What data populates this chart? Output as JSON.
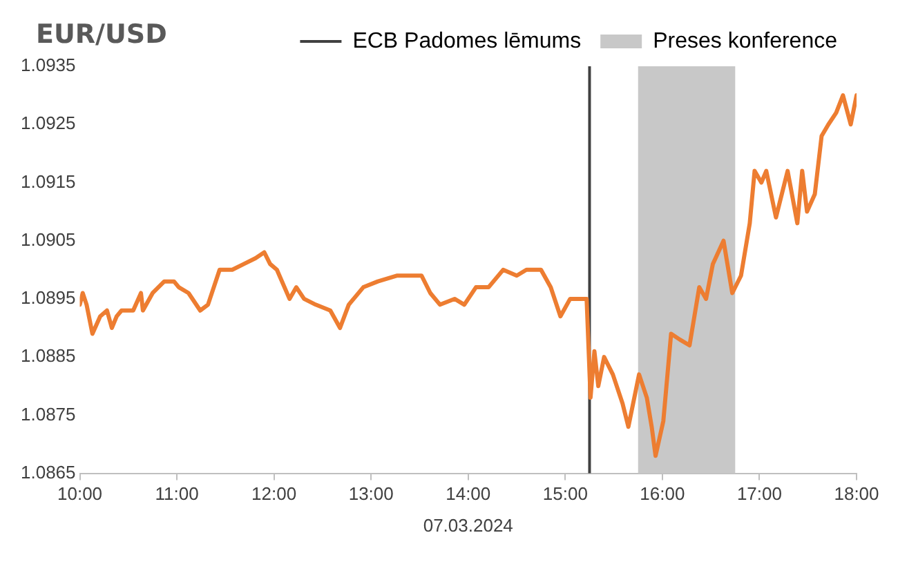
{
  "chart_data": {
    "type": "line",
    "title": "EUR/USD",
    "xlabel": "07.03.2024",
    "x": [
      10.0,
      10.03,
      10.07,
      10.13,
      10.21,
      10.28,
      10.33,
      10.38,
      10.43,
      10.55,
      10.63,
      10.65,
      10.75,
      10.87,
      10.97,
      11.02,
      11.12,
      11.24,
      11.32,
      11.44,
      11.57,
      11.69,
      11.81,
      11.9,
      11.96,
      12.03,
      12.16,
      12.23,
      12.31,
      12.43,
      12.58,
      12.68,
      12.77,
      12.92,
      13.07,
      13.27,
      13.42,
      13.52,
      13.61,
      13.71,
      13.86,
      13.96,
      14.08,
      14.21,
      14.36,
      14.5,
      14.6,
      14.75,
      14.85,
      14.95,
      15.05,
      15.12,
      15.22,
      15.26,
      15.3,
      15.34,
      15.4,
      15.49,
      15.59,
      15.65,
      15.76,
      15.84,
      15.89,
      15.93,
      16.01,
      16.09,
      16.18,
      16.28,
      16.38,
      16.45,
      16.52,
      16.63,
      16.72,
      16.81,
      16.9,
      16.95,
      17.02,
      17.07,
      17.17,
      17.29,
      17.39,
      17.44,
      17.49,
      17.57,
      17.64,
      17.71,
      17.79,
      17.86,
      17.94,
      18.0
    ],
    "series": [
      {
        "color": "#ed7d31",
        "values": [
          1.0894,
          1.0896,
          1.0894,
          1.0889,
          1.0892,
          1.0893,
          1.089,
          1.0892,
          1.0893,
          1.0893,
          1.0896,
          1.0893,
          1.0896,
          1.0898,
          1.0898,
          1.0897,
          1.0896,
          1.0893,
          1.0894,
          1.09,
          1.09,
          1.0901,
          1.0902,
          1.0903,
          1.0901,
          1.09,
          1.0895,
          1.0897,
          1.0895,
          1.0894,
          1.0893,
          1.089,
          1.0894,
          1.0897,
          1.0898,
          1.0899,
          1.0899,
          1.0899,
          1.0896,
          1.0894,
          1.0895,
          1.0894,
          1.0897,
          1.0897,
          1.09,
          1.0899,
          1.09,
          1.09,
          1.0897,
          1.0892,
          1.0895,
          1.0895,
          1.0895,
          1.0878,
          1.0886,
          1.088,
          1.0885,
          1.0882,
          1.0877,
          1.0873,
          1.0882,
          1.0878,
          1.0873,
          1.0868,
          1.0874,
          1.0889,
          1.0888,
          1.0887,
          1.0897,
          1.0895,
          1.0901,
          1.0905,
          1.0896,
          1.0899,
          1.0908,
          1.0917,
          1.0915,
          1.0917,
          1.0909,
          1.0917,
          1.0908,
          1.0917,
          1.091,
          1.0913,
          1.0923,
          1.0925,
          1.0927,
          1.093,
          1.0925,
          1.093
        ]
      }
    ],
    "xlim": [
      10,
      18
    ],
    "xticks": [
      {
        "value": 10,
        "label": "10:00"
      },
      {
        "value": 11,
        "label": "11:00"
      },
      {
        "value": 12,
        "label": "12:00"
      },
      {
        "value": 13,
        "label": "13:00"
      },
      {
        "value": 14,
        "label": "14:00"
      },
      {
        "value": 15,
        "label": "15:00"
      },
      {
        "value": 16,
        "label": "16:00"
      },
      {
        "value": 17,
        "label": "17:00"
      },
      {
        "value": 18,
        "label": "18:00"
      }
    ],
    "ylim": [
      1.0865,
      1.0935
    ],
    "yticks": [
      1.0865,
      1.0875,
      1.0885,
      1.0895,
      1.0905,
      1.0915,
      1.0925,
      1.0935
    ],
    "ref_lines": [
      {
        "axis": "x",
        "value": 15.25,
        "label": "ECB Padomes lēmums",
        "color": "#404040"
      }
    ],
    "bands": [
      {
        "axis": "x",
        "from": 15.75,
        "to": 16.75,
        "label": "Preses konference",
        "color": "#c8c8c8"
      }
    ],
    "legend": "top",
    "grid": false,
    "marker": "none",
    "line_style": "solid"
  }
}
